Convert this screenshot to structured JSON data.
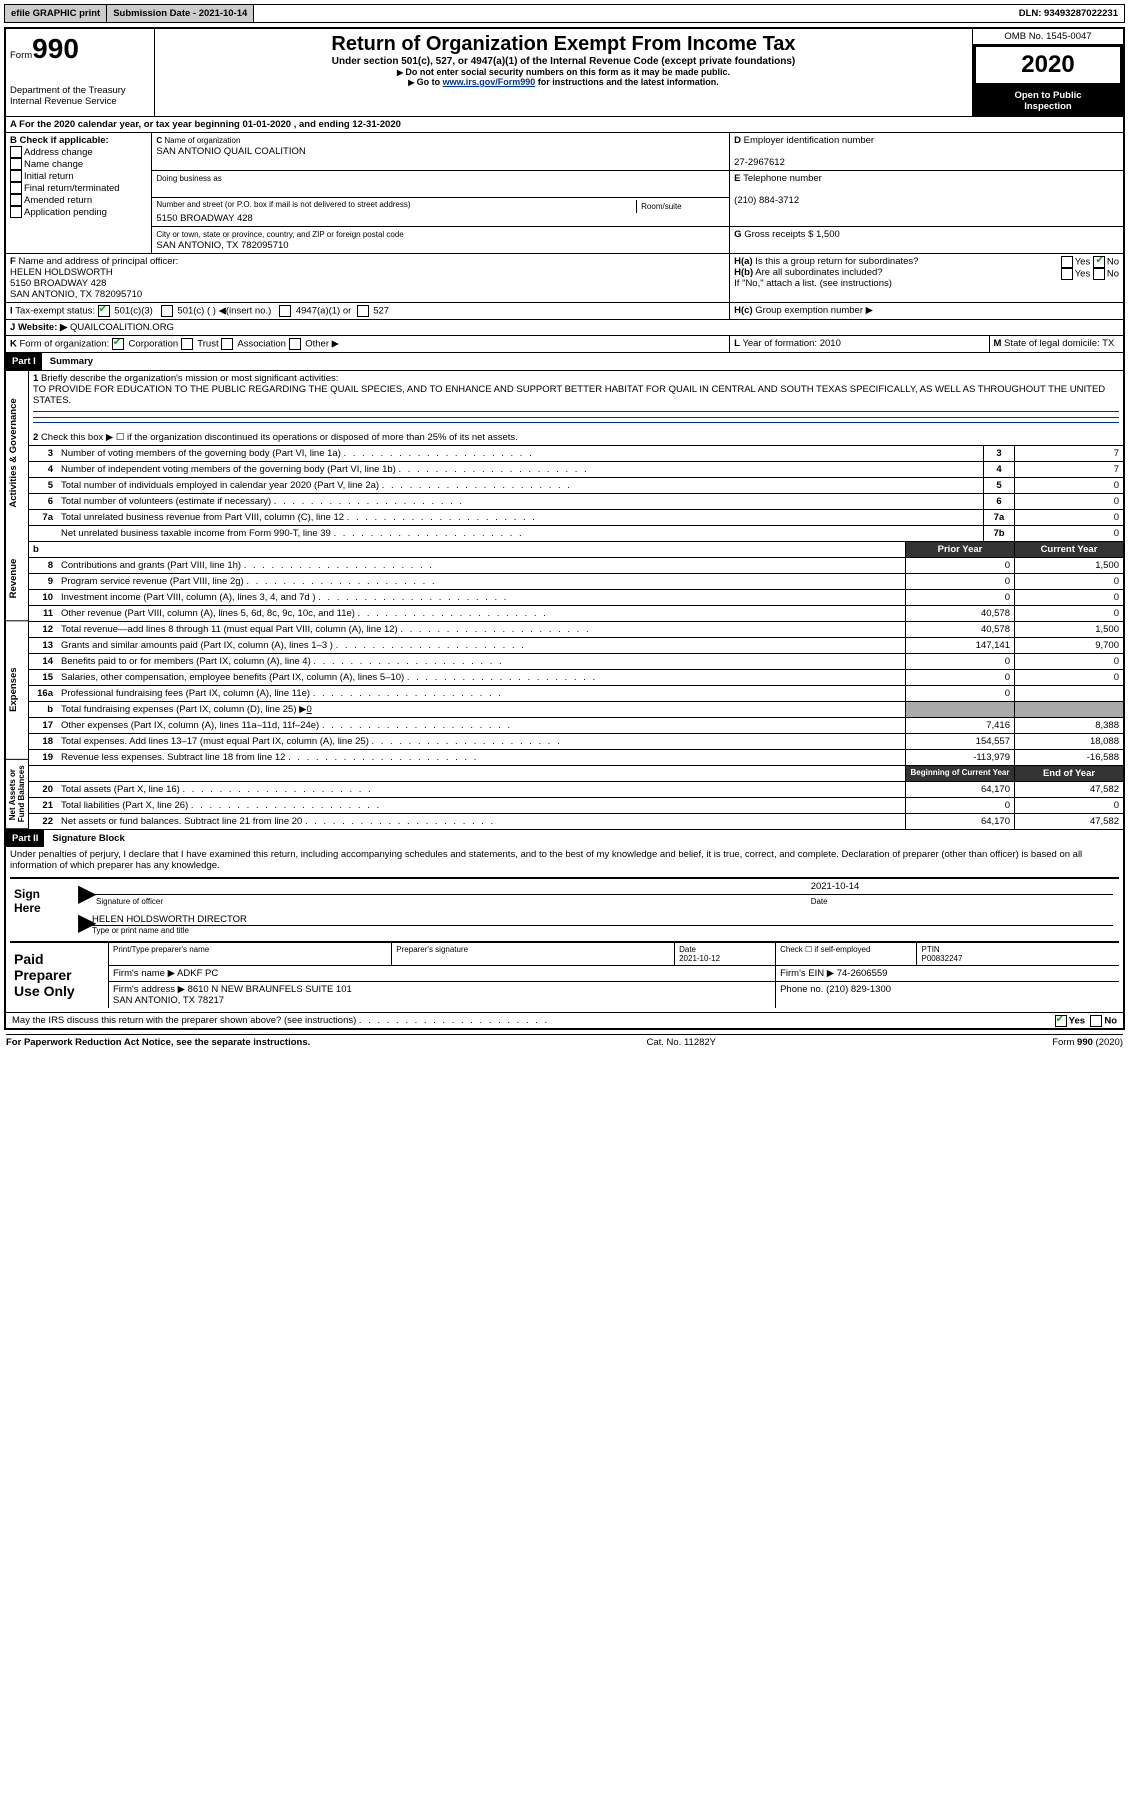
{
  "colors": {
    "link": "#003399",
    "black": "#000000",
    "grey": "#aaa"
  },
  "topbar": {
    "efile": "efile GRAPHIC print",
    "subdate_lbl": "Submission Date - 2021-10-14",
    "dln_lbl": "DLN: 93493287022231"
  },
  "header": {
    "form": "Form",
    "num": "990",
    "dept": "Department of the Treasury\nInternal Revenue Service",
    "title": "Return of Organization Exempt From Income Tax",
    "sub1": "Under section 501(c), 527, or 4947(a)(1) of the Internal Revenue Code (except private foundations)",
    "sub2": "Do not enter social security numbers on this form as it may be made public.",
    "sub3_pre": "Go to ",
    "sub3_link": "www.irs.gov/Form990",
    "sub3_post": " for instructions and the latest information.",
    "omb": "OMB No. 1545-0047",
    "year": "2020",
    "open": "Open to Public\nInspection"
  },
  "lineA": "For the 2020 calendar year, or tax year beginning 01-01-2020     , and ending 12-31-2020",
  "B": {
    "lbl": "Check if applicable:",
    "items": [
      "Address change",
      "Name change",
      "Initial return",
      "Final return/terminated",
      "Amended return",
      "Application pending"
    ]
  },
  "C": {
    "name_lbl": "Name of organization",
    "name": "SAN ANTONIO QUAIL COALITION",
    "dba_lbl": "Doing business as",
    "dba": "",
    "addr_lbl": "Number and street (or P.O. box if mail is not delivered to street address)",
    "room": "Room/suite",
    "addr": "5150 BROADWAY 428",
    "city_lbl": "City or town, state or province, country, and ZIP or foreign postal code",
    "city": "SAN ANTONIO, TX  782095710"
  },
  "D": {
    "lbl": "Employer identification number",
    "val": "27-2967612"
  },
  "E": {
    "lbl": "Telephone number",
    "val": "(210) 884-3712"
  },
  "F": {
    "lbl": "Name and address of principal officer:",
    "val": "HELEN HOLDSWORTH\n5150 BROADWAY 428\nSAN ANTONIO, TX  782095710"
  },
  "G": {
    "lbl": "Gross receipts $",
    "val": "1,500"
  },
  "H": {
    "a": "Is this a group return for subordinates?",
    "b": "Are all subordinates included?",
    "note": "If \"No,\" attach a list. (see instructions)",
    "c": "Group exemption number ▶",
    "yes": "Yes",
    "no": "No",
    "a_ans": "No"
  },
  "I": {
    "lbl": "Tax-exempt status:",
    "o1": "501(c)(3)",
    "o2": "501(c) (  ) ◀(insert no.)",
    "o3": "4947(a)(1) or",
    "o4": "527"
  },
  "J": {
    "lbl": "Website: ▶",
    "val": "QUAILCOALITION.ORG"
  },
  "K": {
    "lbl": "Form of organization:",
    "o": [
      "Corporation",
      "Trust",
      "Association",
      "Other ▶"
    ]
  },
  "L": {
    "lbl": "Year of formation:",
    "val": "2010"
  },
  "M": {
    "lbl": "State of legal domicile:",
    "val": "TX"
  },
  "partI": "Part I",
  "summary": "Summary",
  "sec_act": "Activities & Governance",
  "sec_rev": "Revenue",
  "sec_exp": "Expenses",
  "sec_net": "Net Assets or\nFund Balances",
  "p1": {
    "l1": "Briefly describe the organization's mission or most significant activities:",
    "l1v": "TO PROVIDE FOR EDUCATION TO THE PUBLIC REGARDING THE QUAIL SPECIES, AND TO ENHANCE AND SUPPORT BETTER HABITAT FOR QUAIL IN CENTRAL AND SOUTH TEXAS SPECIFICALLY, AS WELL AS THROUGHOUT THE UNITED STATES.",
    "l2": "Check this box ▶ ☐ if the organization discontinued its operations or disposed of more than 25% of its net assets.",
    "rows": [
      {
        "n": "3",
        "t": "Number of voting members of the governing body (Part VI, line 1a)",
        "b": "3",
        "v": "7"
      },
      {
        "n": "4",
        "t": "Number of independent voting members of the governing body (Part VI, line 1b)",
        "b": "4",
        "v": "7"
      },
      {
        "n": "5",
        "t": "Total number of individuals employed in calendar year 2020 (Part V, line 2a)",
        "b": "5",
        "v": "0"
      },
      {
        "n": "6",
        "t": "Total number of volunteers (estimate if necessary)",
        "b": "6",
        "v": "0"
      },
      {
        "n": "7a",
        "t": "Total unrelated business revenue from Part VIII, column (C), line 12",
        "b": "7a",
        "v": "0"
      },
      {
        "n": "",
        "t": "Net unrelated business taxable income from Form 990-T, line 39",
        "b": "7b",
        "v": "0"
      }
    ],
    "py": "Prior Year",
    "cy": "Current Year",
    "rev": [
      {
        "n": "8",
        "t": "Contributions and grants (Part VIII, line 1h)",
        "p": "0",
        "c": "1,500"
      },
      {
        "n": "9",
        "t": "Program service revenue (Part VIII, line 2g)",
        "p": "0",
        "c": "0"
      },
      {
        "n": "10",
        "t": "Investment income (Part VIII, column (A), lines 3, 4, and 7d )",
        "p": "0",
        "c": "0"
      },
      {
        "n": "11",
        "t": "Other revenue (Part VIII, column (A), lines 5, 6d, 8c, 9c, 10c, and 11e)",
        "p": "40,578",
        "c": "0"
      },
      {
        "n": "12",
        "t": "Total revenue—add lines 8 through 11 (must equal Part VIII, column (A), line 12)",
        "p": "40,578",
        "c": "1,500"
      }
    ],
    "exp": [
      {
        "n": "13",
        "t": "Grants and similar amounts paid (Part IX, column (A), lines 1–3 )",
        "p": "147,141",
        "c": "9,700"
      },
      {
        "n": "14",
        "t": "Benefits paid to or for members (Part IX, column (A), line 4)",
        "p": "0",
        "c": "0"
      },
      {
        "n": "15",
        "t": "Salaries, other compensation, employee benefits (Part IX, column (A), lines 5–10)",
        "p": "0",
        "c": "0"
      },
      {
        "n": "16a",
        "t": "Professional fundraising fees (Part IX, column (A), line 11e)",
        "p": "0",
        "c": ""
      },
      {
        "n": "b",
        "t": "Total fundraising expenses (Part IX, column (D), line 25) ▶",
        "p": "grey",
        "c": "grey",
        "v": "0"
      },
      {
        "n": "17",
        "t": "Other expenses (Part IX, column (A), lines 11a–11d, 11f–24e)",
        "p": "7,416",
        "c": "8,388"
      },
      {
        "n": "18",
        "t": "Total expenses. Add lines 13–17 (must equal Part IX, column (A), line 25)",
        "p": "154,557",
        "c": "18,088"
      },
      {
        "n": "19",
        "t": "Revenue less expenses. Subtract line 18 from line 12",
        "p": "-113,979",
        "c": "-16,588"
      }
    ],
    "bcy": "Beginning of Current Year",
    "ey": "End of Year",
    "net": [
      {
        "n": "20",
        "t": "Total assets (Part X, line 16)",
        "p": "64,170",
        "c": "47,582"
      },
      {
        "n": "21",
        "t": "Total liabilities (Part X, line 26)",
        "p": "0",
        "c": "0"
      },
      {
        "n": "22",
        "t": "Net assets or fund balances. Subtract line 21 from line 20",
        "p": "64,170",
        "c": "47,582"
      }
    ]
  },
  "partII": "Part II",
  "sigblk": "Signature Block",
  "sigtxt": "Under penalties of perjury, I declare that I have examined this return, including accompanying schedules and statements, and to the best of my knowledge and belief, it is true, correct, and complete. Declaration of preparer (other than officer) is based on all information of which preparer has any knowledge.",
  "sign": {
    "here": "Sign\nHere",
    "sigoff": "Signature of officer",
    "date": "Date",
    "datev": "2021-10-14",
    "name": "HELEN HOLDSWORTH  DIRECTOR",
    "namelbl": "Type or print name and title"
  },
  "prep": {
    "lbl": "Paid\nPreparer\nUse Only",
    "r1": [
      "Print/Type preparer's name",
      "Preparer's signature",
      "Date\n2021-10-12",
      "Check ☐ if self-employed",
      "PTIN\nP00832247"
    ],
    "firm_lbl": "Firm's name ▶",
    "firm": "ADKF PC",
    "ein_lbl": "Firm's EIN ▶",
    "ein": "74-2606559",
    "addr_lbl": "Firm's address ▶",
    "addr": "8610 N NEW BRAUNFELS SUITE 101\nSAN ANTONIO, TX  78217",
    "ph_lbl": "Phone no.",
    "ph": "(210) 829-1300"
  },
  "discuss": "May the IRS discuss this return with the preparer shown above? (see instructions)",
  "discuss_ans": "Yes",
  "footer": {
    "l": "For Paperwork Reduction Act Notice, see the separate instructions.",
    "c": "Cat. No. 11282Y",
    "r": "Form 990 (2020)"
  }
}
